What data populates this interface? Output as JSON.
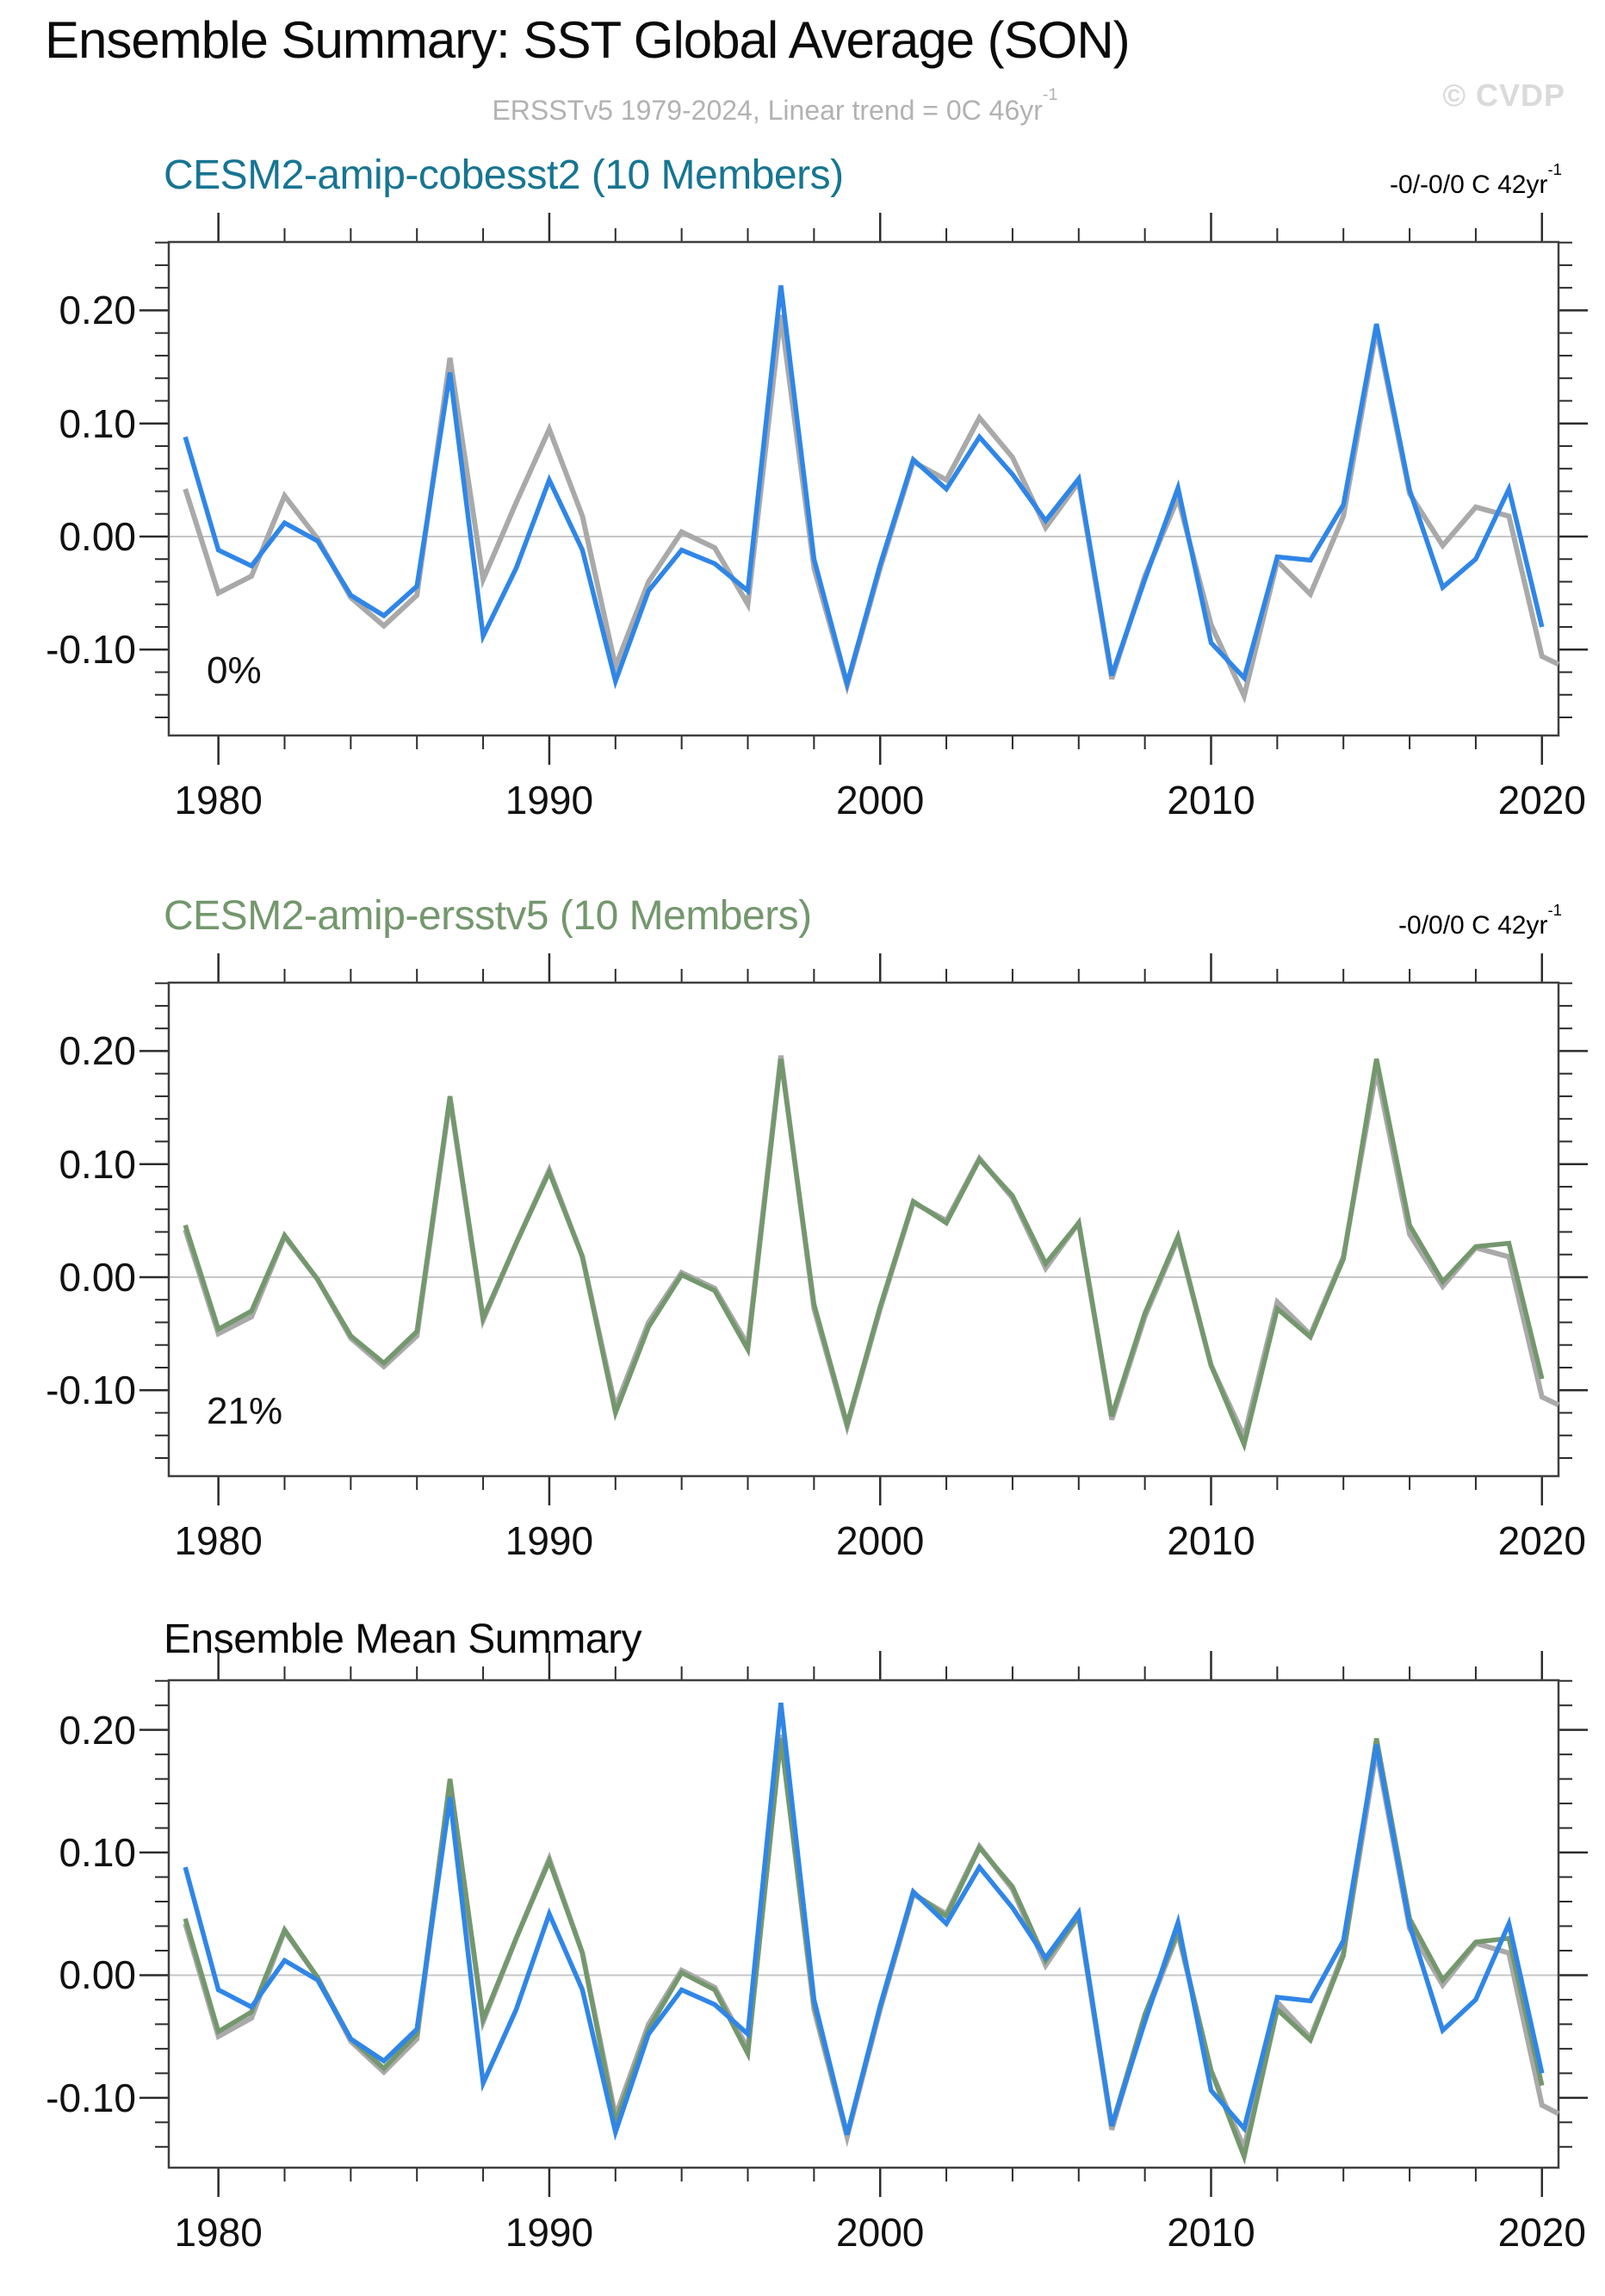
{
  "page": {
    "title": "Ensemble Summary: SST Global Average (SON)",
    "subtitle": {
      "text": "ERSSTv5 1979-2024, Linear trend = 0C 46yr",
      "sup": "-1"
    },
    "watermark": "© CVDP"
  },
  "colors": {
    "obs_gray": "#a9a9a9",
    "member_blue": "#2f86e7",
    "cobesst2_teal": "#1d6f90",
    "ersstv5_green": "#74976d",
    "zero_line": "#c6c6c6",
    "axis": "#3f3f3f",
    "tick": "#2b2b2b"
  },
  "series_defs": {
    "obs": {
      "name": "ERSSTv5 observations",
      "color": "#a9a9a9",
      "width": 6,
      "x_start": 1979,
      "values": [
        0.042,
        -0.05,
        -0.035,
        0.036,
        -0.002,
        -0.054,
        -0.079,
        -0.052,
        0.158,
        -0.038,
        0.03,
        0.095,
        0.018,
        -0.115,
        -0.04,
        0.004,
        -0.01,
        -0.06,
        0.196,
        -0.028,
        -0.132,
        -0.028,
        0.066,
        0.05,
        0.105,
        0.07,
        0.008,
        0.048,
        -0.126,
        -0.035,
        0.034,
        -0.078,
        -0.141,
        -0.022,
        -0.051,
        0.018,
        0.183,
        0.038,
        -0.008,
        0.026,
        0.018,
        -0.106,
        -0.12
      ]
    },
    "cobesst2_mean": {
      "name": "CESM2-amip-cobesst2 ensemble mean",
      "color": "#2f86e7",
      "width": 5.5,
      "x_start": 1979,
      "values": [
        0.088,
        -0.012,
        -0.026,
        0.012,
        -0.004,
        -0.052,
        -0.07,
        -0.044,
        0.145,
        -0.088,
        -0.028,
        0.05,
        -0.012,
        -0.128,
        -0.048,
        -0.012,
        -0.024,
        -0.048,
        0.222,
        -0.02,
        -0.13,
        -0.025,
        0.068,
        0.042,
        0.088,
        0.055,
        0.014,
        0.051,
        -0.123,
        -0.038,
        0.043,
        -0.094,
        -0.125,
        -0.018,
        -0.021,
        0.028,
        0.188,
        0.041,
        -0.045,
        -0.02,
        0.042,
        -0.08
      ]
    },
    "ersstv5_mean": {
      "name": "CESM2-amip-ersstv5 ensemble mean",
      "color": "#74976d",
      "width": 5.5,
      "x_start": 1979,
      "values": [
        0.046,
        -0.046,
        -0.03,
        0.037,
        -0.002,
        -0.052,
        -0.076,
        -0.048,
        0.16,
        -0.036,
        0.03,
        0.093,
        0.018,
        -0.12,
        -0.044,
        0.002,
        -0.012,
        -0.064,
        0.193,
        -0.024,
        -0.13,
        -0.026,
        0.067,
        0.048,
        0.104,
        0.072,
        0.012,
        0.048,
        -0.123,
        -0.032,
        0.036,
        -0.078,
        -0.148,
        -0.028,
        -0.053,
        0.016,
        0.193,
        0.046,
        -0.004,
        0.027,
        0.03,
        -0.09
      ]
    }
  },
  "chart_data": [
    {
      "type": "line",
      "title": "CESM2-amip-cobesst2 (10 Members)",
      "trend_label": {
        "text": "-0/-0/0 C 42yr",
        "sup": "-1"
      },
      "annotation": "0%",
      "xlabel": "",
      "ylabel": "",
      "xlim": [
        1978.5,
        2020.5
      ],
      "ylim": [
        -0.176,
        0.2605
      ],
      "x_major_ticks": [
        1980,
        1990,
        2000,
        2010,
        2020
      ],
      "x_tick_labels": [
        "1980",
        "1990",
        "2000",
        "2010",
        "2020"
      ],
      "x_minor_step": 2,
      "y_major_ticks": [
        -0.1,
        0.0,
        0.1,
        0.2
      ],
      "y_tick_labels": [
        "-0.10",
        "0.00",
        "0.10",
        "0.20"
      ],
      "y_minor_step": 0.02,
      "grid_y": 0,
      "legend": null,
      "series": [
        "obs",
        "cobesst2_mean"
      ]
    },
    {
      "type": "line",
      "title": "CESM2-amip-ersstv5 (10 Members)",
      "trend_label": {
        "text": "-0/0/0 C 42yr",
        "sup": "-1"
      },
      "annotation": "21%",
      "xlabel": "",
      "ylabel": "",
      "xlim": [
        1978.5,
        2020.5
      ],
      "ylim": [
        -0.176,
        0.2605
      ],
      "x_major_ticks": [
        1980,
        1990,
        2000,
        2010,
        2020
      ],
      "x_tick_labels": [
        "1980",
        "1990",
        "2000",
        "2010",
        "2020"
      ],
      "x_minor_step": 2,
      "y_major_ticks": [
        -0.1,
        0.0,
        0.1,
        0.2
      ],
      "y_tick_labels": [
        "-0.10",
        "0.00",
        "0.10",
        "0.20"
      ],
      "y_minor_step": 0.02,
      "grid_y": 0,
      "legend": null,
      "series": [
        "obs",
        "ersstv5_mean"
      ]
    },
    {
      "type": "line",
      "title": "Ensemble Mean Summary",
      "trend_label": null,
      "annotation": null,
      "xlabel": "",
      "ylabel": "",
      "xlim": [
        1978.5,
        2020.5
      ],
      "ylim": [
        -0.157,
        0.2405
      ],
      "x_major_ticks": [
        1980,
        1990,
        2000,
        2010,
        2020
      ],
      "x_tick_labels": [
        "1980",
        "1990",
        "2000",
        "2010",
        "2020"
      ],
      "x_minor_step": 2,
      "y_major_ticks": [
        -0.1,
        0.0,
        0.1,
        0.2
      ],
      "y_tick_labels": [
        "-0.10",
        "0.00",
        "0.10",
        "0.20"
      ],
      "y_minor_step": 0.02,
      "grid_y": 0,
      "legend": null,
      "series": [
        "obs",
        "ersstv5_mean",
        "cobesst2_mean"
      ]
    }
  ]
}
